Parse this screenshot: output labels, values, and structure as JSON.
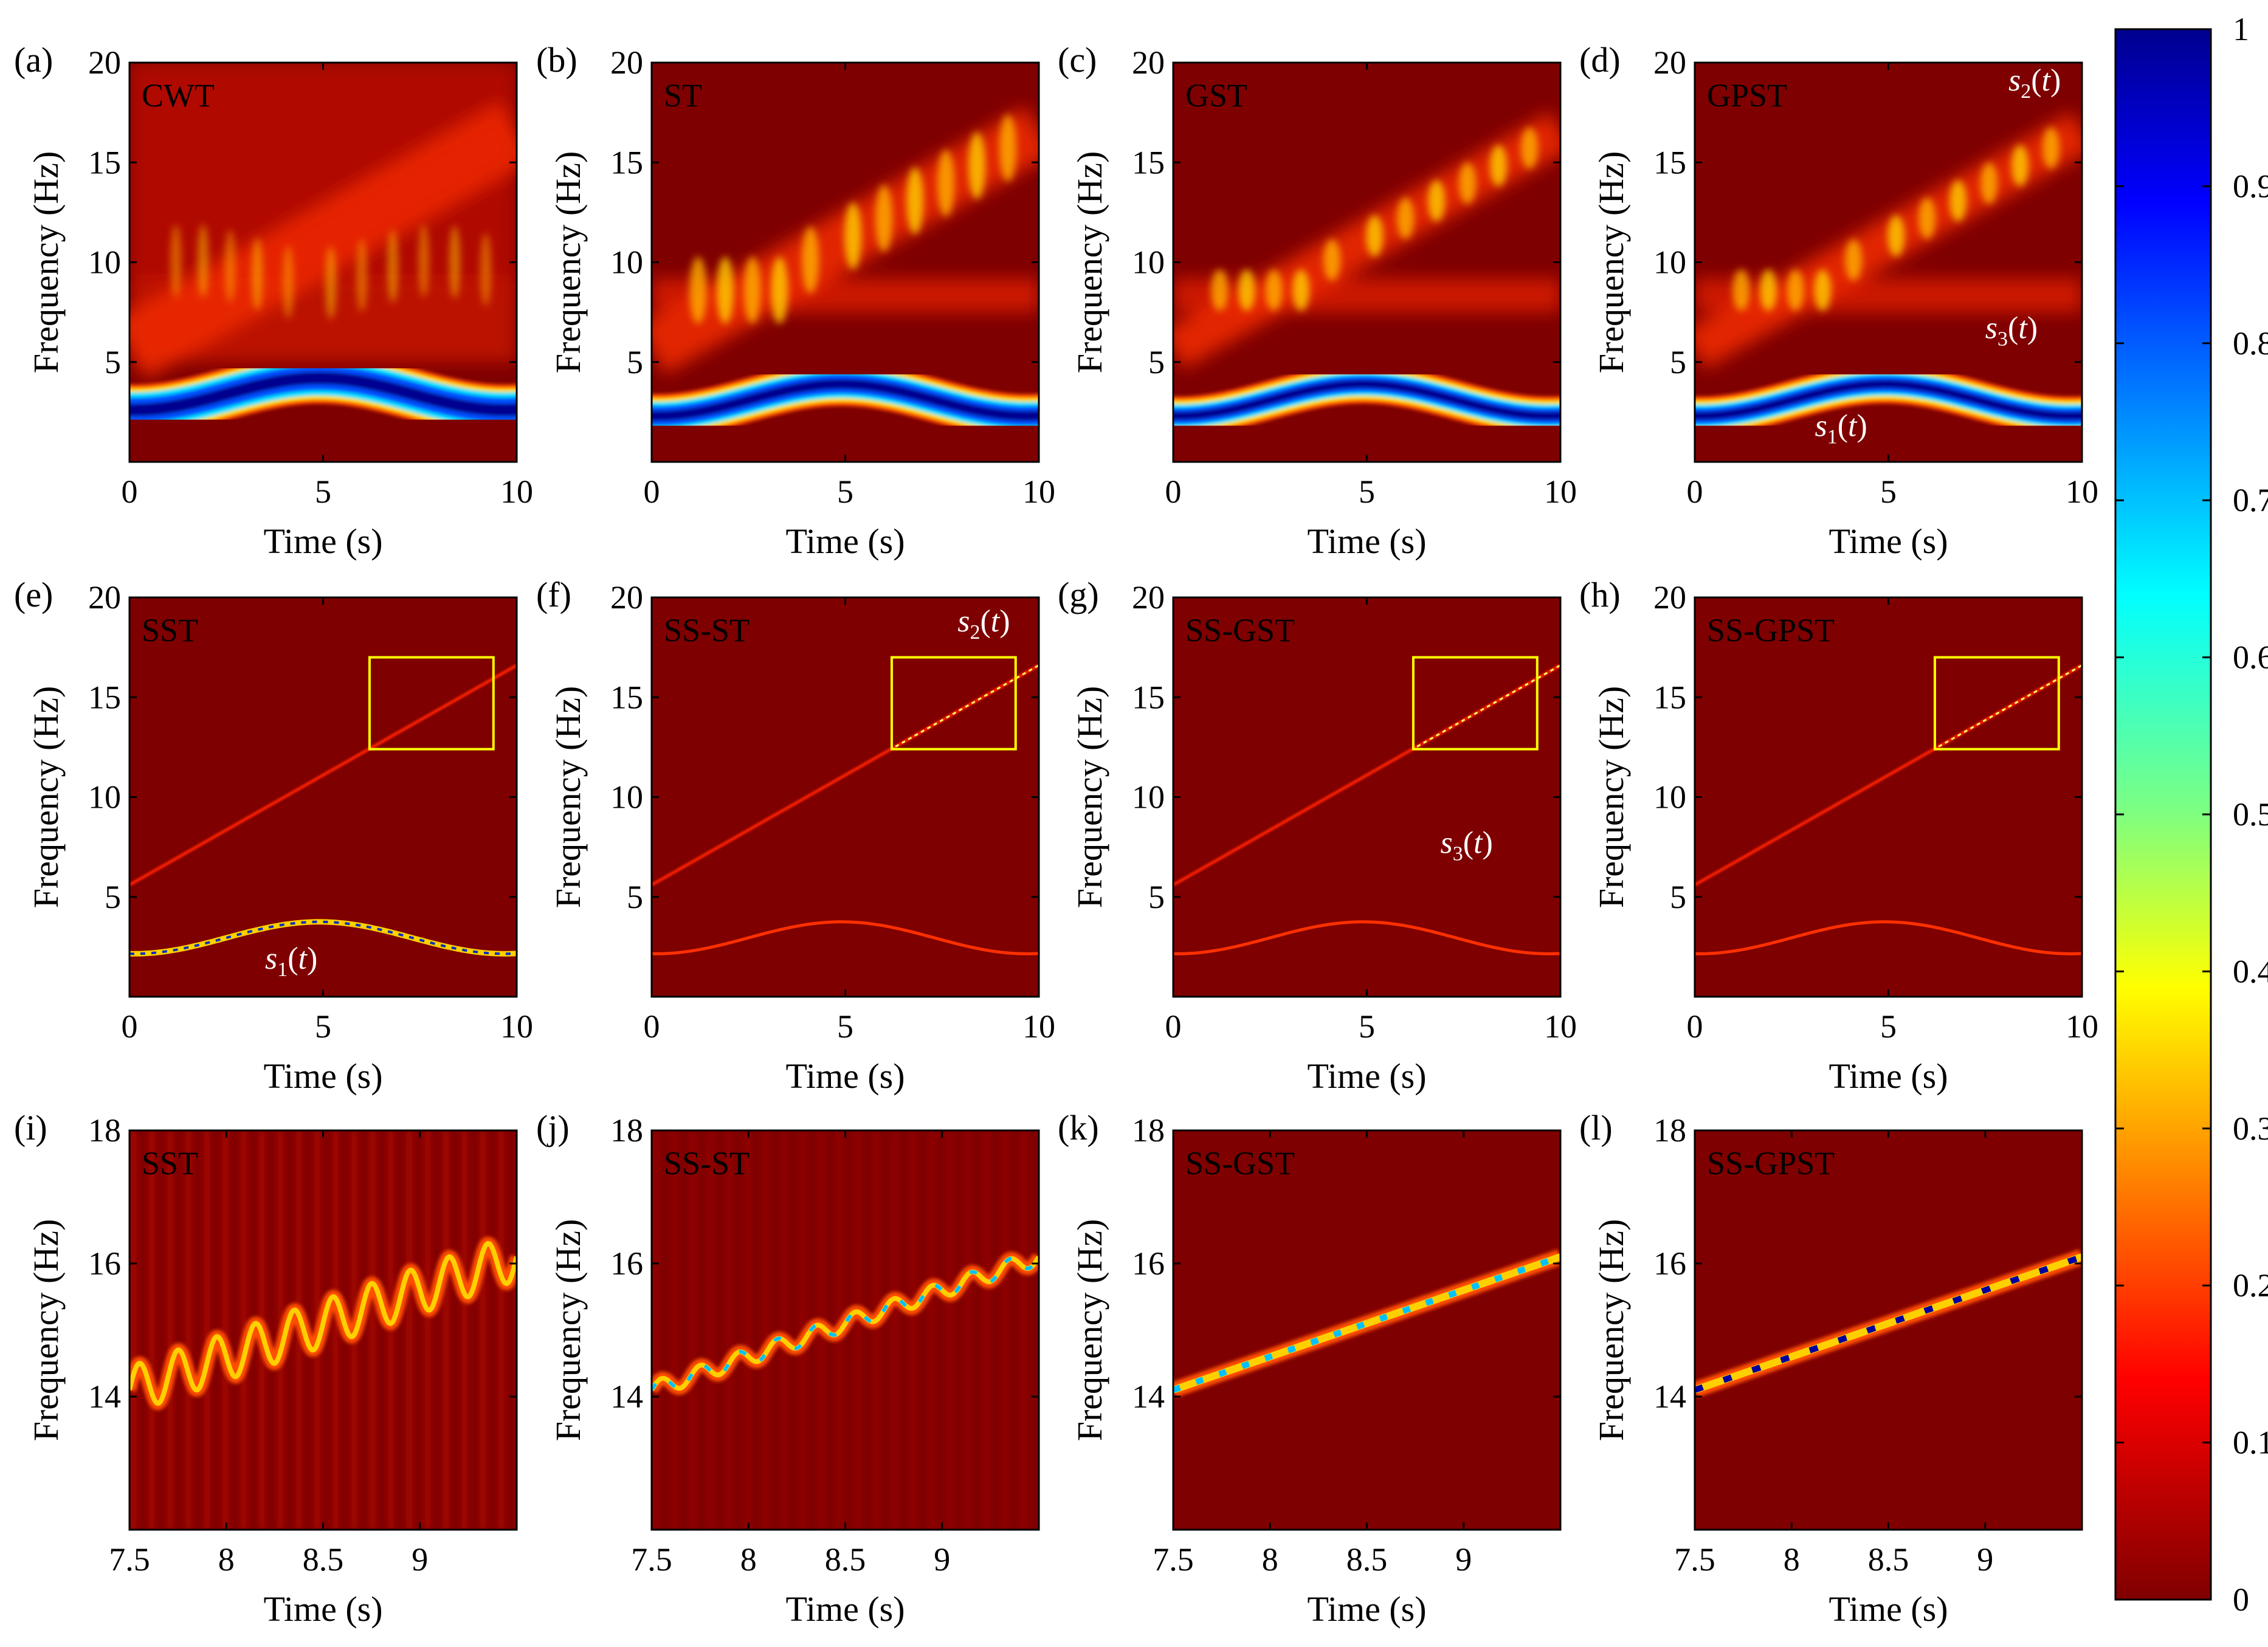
{
  "chart_data": [
    {
      "id": "a",
      "type": "heatmap",
      "panel_label": "(a)",
      "method_label": "CWT",
      "xlabel": "Time (s)",
      "ylabel": "Frequency (Hz)",
      "xlim": [
        0,
        10
      ],
      "ylim": [
        0,
        20
      ],
      "xticks": [
        "0",
        "5",
        "10"
      ],
      "yticks": [
        "5",
        "10",
        "15",
        "20"
      ],
      "style": "blur",
      "annotations": []
    },
    {
      "id": "b",
      "type": "heatmap",
      "panel_label": "(b)",
      "method_label": "ST",
      "xlabel": "Time (s)",
      "ylabel": "Frequency (Hz)",
      "xlim": [
        0,
        10
      ],
      "ylim": [
        0,
        20
      ],
      "xticks": [
        "0",
        "5",
        "10"
      ],
      "yticks": [
        "5",
        "10",
        "15",
        "20"
      ],
      "style": "blur",
      "annotations": []
    },
    {
      "id": "c",
      "type": "heatmap",
      "panel_label": "(c)",
      "method_label": "GST",
      "xlabel": "Time (s)",
      "ylabel": "Frequency (Hz)",
      "xlim": [
        0,
        10
      ],
      "ylim": [
        0,
        20
      ],
      "xticks": [
        "0",
        "5",
        "10"
      ],
      "yticks": [
        "5",
        "10",
        "15",
        "20"
      ],
      "style": "blur",
      "annotations": []
    },
    {
      "id": "d",
      "type": "heatmap",
      "panel_label": "(d)",
      "method_label": "GPST",
      "xlabel": "Time (s)",
      "ylabel": "Frequency (Hz)",
      "xlim": [
        0,
        10
      ],
      "ylim": [
        0,
        20
      ],
      "xticks": [
        "0",
        "5",
        "10"
      ],
      "yticks": [
        "5",
        "10",
        "15",
        "20"
      ],
      "style": "blur",
      "annotations": [
        {
          "sym": "s",
          "sub": "2",
          "arg": "t",
          "x": 8.1,
          "y": 18.6
        },
        {
          "sym": "s",
          "sub": "3",
          "arg": "t",
          "x": 7.5,
          "y": 6.2
        },
        {
          "sym": "s",
          "sub": "1",
          "arg": "t",
          "x": 3.1,
          "y": 1.3
        }
      ]
    },
    {
      "id": "e",
      "type": "heatmap",
      "panel_label": "(e)",
      "method_label": "SST",
      "xlabel": "Time (s)",
      "ylabel": "Frequency (Hz)",
      "xlim": [
        0,
        10
      ],
      "ylim": [
        0,
        20
      ],
      "xticks": [
        "0",
        "5",
        "10"
      ],
      "yticks": [
        "5",
        "10",
        "15",
        "20"
      ],
      "style": "sharp",
      "annotations": [
        {
          "sym": "s",
          "sub": "1",
          "arg": "t",
          "x": 3.5,
          "y": 1.4
        }
      ],
      "zoom_box": {
        "x0": 6.2,
        "x1": 9.4,
        "y0": 12.4,
        "y1": 17
      }
    },
    {
      "id": "f",
      "type": "heatmap",
      "panel_label": "(f)",
      "method_label": "SS-ST",
      "xlabel": "Time (s)",
      "ylabel": "Frequency (Hz)",
      "xlim": [
        0,
        10
      ],
      "ylim": [
        0,
        20
      ],
      "xticks": [
        "0",
        "5",
        "10"
      ],
      "yticks": [
        "5",
        "10",
        "15",
        "20"
      ],
      "style": "sharp",
      "annotations": [
        {
          "sym": "s",
          "sub": "2",
          "arg": "t",
          "x": 7.9,
          "y": 18.3
        }
      ],
      "zoom_box": {
        "x0": 6.2,
        "x1": 9.4,
        "y0": 12.4,
        "y1": 17
      }
    },
    {
      "id": "g",
      "type": "heatmap",
      "panel_label": "(g)",
      "method_label": "SS-GST",
      "xlabel": "Time (s)",
      "ylabel": "Frequency (Hz)",
      "xlim": [
        0,
        10
      ],
      "ylim": [
        0,
        20
      ],
      "xticks": [
        "0",
        "5",
        "10"
      ],
      "yticks": [
        "5",
        "10",
        "15",
        "20"
      ],
      "style": "sharp",
      "annotations": [
        {
          "sym": "s",
          "sub": "3",
          "arg": "t",
          "x": 6.9,
          "y": 7.2
        }
      ],
      "zoom_box": {
        "x0": 6.2,
        "x1": 9.4,
        "y0": 12.4,
        "y1": 17
      }
    },
    {
      "id": "h",
      "type": "heatmap",
      "panel_label": "(h)",
      "method_label": "SS-GPST",
      "xlabel": "Time (s)",
      "ylabel": "Frequency (Hz)",
      "xlim": [
        0,
        10
      ],
      "ylim": [
        0,
        20
      ],
      "xticks": [
        "0",
        "5",
        "10"
      ],
      "yticks": [
        "5",
        "10",
        "15",
        "20"
      ],
      "style": "sharp",
      "annotations": [],
      "zoom_box": {
        "x0": 6.2,
        "x1": 9.4,
        "y0": 12.4,
        "y1": 17
      }
    },
    {
      "id": "i",
      "type": "heatmap",
      "panel_label": "(i)",
      "method_label": "SST",
      "xlabel": "Time (s)",
      "ylabel": "Frequency (Hz)",
      "xlim": [
        7.5,
        9.5
      ],
      "ylim": [
        12,
        18
      ],
      "xticks": [
        "7.5",
        "8",
        "8.5",
        "9"
      ],
      "yticks": [
        "14",
        "16",
        "18"
      ],
      "style": "zoom",
      "zoom_level": 0,
      "annotations": []
    },
    {
      "id": "j",
      "type": "heatmap",
      "panel_label": "(j)",
      "method_label": "SS-ST",
      "xlabel": "Time (s)",
      "ylabel": "Frequency (Hz)",
      "xlim": [
        7.5,
        9.5
      ],
      "ylim": [
        12,
        18
      ],
      "xticks": [
        "7.5",
        "8",
        "8.5",
        "9"
      ],
      "yticks": [
        "14",
        "16",
        "18"
      ],
      "style": "zoom",
      "zoom_level": 1,
      "annotations": []
    },
    {
      "id": "k",
      "type": "heatmap",
      "panel_label": "(k)",
      "method_label": "SS-GST",
      "xlabel": "Time (s)",
      "ylabel": "Frequency (Hz)",
      "xlim": [
        7.5,
        9.5
      ],
      "ylim": [
        12,
        18
      ],
      "xticks": [
        "7.5",
        "8",
        "8.5",
        "9"
      ],
      "yticks": [
        "14",
        "16",
        "18"
      ],
      "style": "zoom",
      "zoom_level": 2,
      "annotations": []
    },
    {
      "id": "l",
      "type": "heatmap",
      "panel_label": "(l)",
      "method_label": "SS-GPST",
      "xlabel": "Time (s)",
      "ylabel": "Frequency (Hz)",
      "xlim": [
        7.5,
        9.5
      ],
      "ylim": [
        12,
        18
      ],
      "xticks": [
        "7.5",
        "8",
        "8.5",
        "9"
      ],
      "yticks": [
        "14",
        "16",
        "18"
      ],
      "style": "zoom",
      "zoom_level": 3,
      "annotations": []
    }
  ],
  "colorbar": {
    "colormap": "jet-reversed",
    "range": [
      0,
      1
    ],
    "ticks": [
      "0",
      "0.1",
      "0.2",
      "0.3",
      "0.4",
      "0.5",
      "0.6",
      "0.7",
      "0.8",
      "0.9",
      "1"
    ]
  },
  "colors": {
    "background": "#7f0000",
    "highlight_box": "#ffff00",
    "axis": "#000000",
    "annotation_text": "#ffffff"
  }
}
